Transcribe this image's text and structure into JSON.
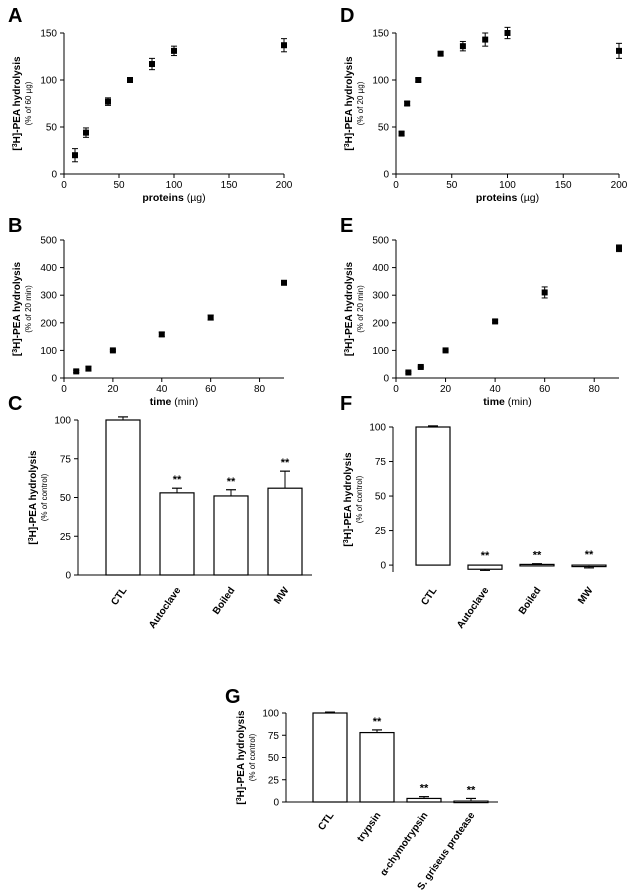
{
  "chart_data": [
    {
      "panel": "A",
      "type": "scatter",
      "ylabel": "[³H]-PEA hydrolysis",
      "ysub": "(% of 60 µg)",
      "xlabel": "proteins",
      "xunit": "(µg)",
      "xlim": [
        0,
        200
      ],
      "ylim": [
        0,
        150
      ],
      "xticks": [
        0,
        50,
        100,
        150,
        200
      ],
      "yticks": [
        0,
        50,
        100,
        150
      ],
      "points": [
        {
          "x": 10,
          "y": 20,
          "err": 7
        },
        {
          "x": 20,
          "y": 44,
          "err": 5
        },
        {
          "x": 40,
          "y": 77,
          "err": 4
        },
        {
          "x": 60,
          "y": 100,
          "err": 1
        },
        {
          "x": 80,
          "y": 117,
          "err": 6
        },
        {
          "x": 100,
          "y": 131,
          "err": 5
        },
        {
          "x": 200,
          "y": 137,
          "err": 7
        }
      ]
    },
    {
      "panel": "D",
      "type": "scatter",
      "ylabel": "[³H]-PEA hydrolysis",
      "ysub": "(% of 20 µg)",
      "xlabel": "proteins",
      "xunit": "(µg)",
      "xlim": [
        0,
        200
      ],
      "ylim": [
        0,
        150
      ],
      "xticks": [
        0,
        50,
        100,
        150,
        200
      ],
      "yticks": [
        0,
        50,
        100,
        150
      ],
      "points": [
        {
          "x": 5,
          "y": 43,
          "err": 2
        },
        {
          "x": 10,
          "y": 75,
          "err": 2
        },
        {
          "x": 20,
          "y": 100,
          "err": 2
        },
        {
          "x": 40,
          "y": 128,
          "err": 2
        },
        {
          "x": 60,
          "y": 136,
          "err": 5
        },
        {
          "x": 80,
          "y": 143,
          "err": 7
        },
        {
          "x": 100,
          "y": 150,
          "err": 6
        },
        {
          "x": 200,
          "y": 131,
          "err": 8
        }
      ]
    },
    {
      "panel": "B",
      "type": "scatter",
      "ylabel": "[³H]-PEA hydrolysis",
      "ysub": "(% of 20 min)",
      "xlabel": "time",
      "xunit": "(min)",
      "xlim": [
        0,
        90
      ],
      "ylim": [
        0,
        500
      ],
      "xticks": [
        0,
        20,
        40,
        60,
        80
      ],
      "yticks": [
        0,
        100,
        200,
        300,
        400,
        500
      ],
      "points": [
        {
          "x": 5,
          "y": 24,
          "err": 4
        },
        {
          "x": 10,
          "y": 34,
          "err": 8
        },
        {
          "x": 20,
          "y": 100,
          "err": 3
        },
        {
          "x": 40,
          "y": 158,
          "err": 8
        },
        {
          "x": 60,
          "y": 219,
          "err": 9
        },
        {
          "x": 90,
          "y": 345,
          "err": 5
        }
      ]
    },
    {
      "panel": "E",
      "type": "scatter",
      "ylabel": "[³H]-PEA hydrolysis",
      "ysub": "(% of 20 min)",
      "xlabel": "time",
      "xunit": "(min)",
      "xlim": [
        0,
        90
      ],
      "ylim": [
        0,
        500
      ],
      "xticks": [
        0,
        20,
        40,
        60,
        80
      ],
      "yticks": [
        0,
        100,
        200,
        300,
        400,
        500
      ],
      "points": [
        {
          "x": 5,
          "y": 20,
          "err": 3
        },
        {
          "x": 10,
          "y": 40,
          "err": 3
        },
        {
          "x": 20,
          "y": 100,
          "err": 3
        },
        {
          "x": 40,
          "y": 205,
          "err": 5
        },
        {
          "x": 60,
          "y": 310,
          "err": 20
        },
        {
          "x": 90,
          "y": 470,
          "err": 12
        }
      ]
    },
    {
      "panel": "C",
      "type": "bar",
      "ylabel": "[³H]-PEA hydrolysis",
      "ysub": "(% of control)",
      "ylim": [
        0,
        100
      ],
      "yticks": [
        0,
        25,
        50,
        75,
        100
      ],
      "categories": [
        "CTL",
        "Autoclave",
        "Boiled",
        "MW"
      ],
      "values": [
        100,
        53,
        51,
        56
      ],
      "errors": [
        2,
        3,
        4,
        11
      ],
      "annotations": [
        "",
        "**",
        "**",
        "**"
      ]
    },
    {
      "panel": "F",
      "type": "bar",
      "ylabel": "[³H]-PEA hydrolysis",
      "ysub": "(% of control)",
      "ylim": [
        -5,
        100
      ],
      "yticks": [
        0,
        25,
        50,
        75,
        100
      ],
      "categories": [
        "CTL",
        "Autoclave",
        "Boiled",
        "MW"
      ],
      "values": [
        100,
        -3,
        0.5,
        -0.5
      ],
      "errors": [
        0.8,
        0.8,
        0.5,
        1.5
      ],
      "annotations": [
        "",
        "**",
        "**",
        "**"
      ]
    },
    {
      "panel": "G",
      "type": "bar",
      "ylabel": "[³H]-PEA hydrolysis",
      "ysub": "(% of control)",
      "ylim": [
        0,
        100
      ],
      "yticks": [
        0,
        25,
        50,
        75,
        100
      ],
      "categories": [
        "CTL",
        "trypsin",
        "α-chymotrypsin",
        "S. griseus protease"
      ],
      "values": [
        100,
        78,
        4,
        1
      ],
      "errors": [
        1,
        3,
        2,
        3
      ],
      "annotations": [
        "",
        "**",
        "**",
        "**"
      ]
    }
  ]
}
